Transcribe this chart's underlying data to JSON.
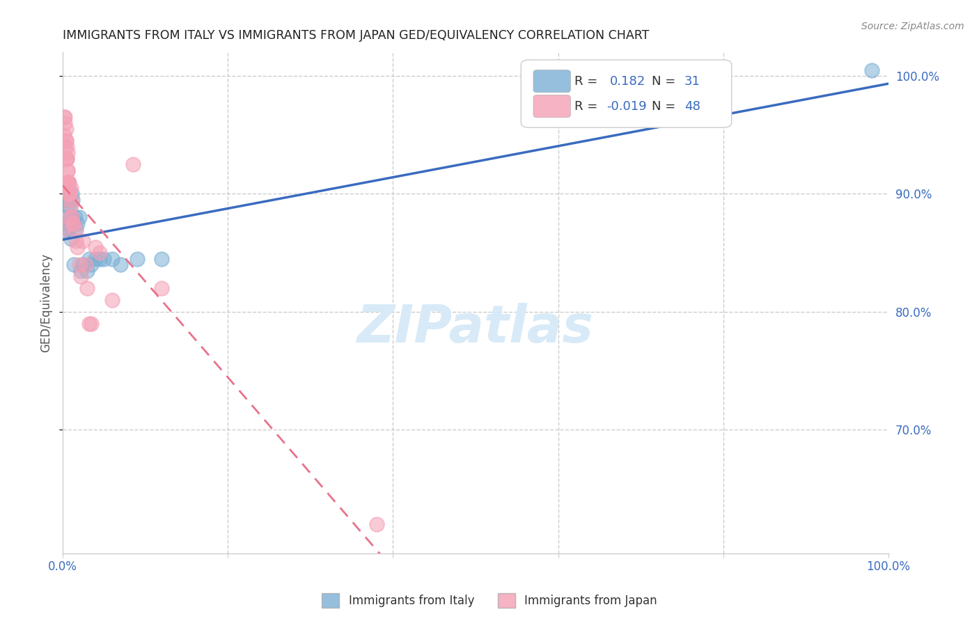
{
  "title": "IMMIGRANTS FROM ITALY VS IMMIGRANTS FROM JAPAN GED/EQUIVALENCY CORRELATION CHART",
  "source": "Source: ZipAtlas.com",
  "ylabel": "GED/Equivalency",
  "yticks_right": [
    "100.0%",
    "90.0%",
    "80.0%",
    "70.0%"
  ],
  "ytick_values": [
    1.0,
    0.9,
    0.8,
    0.7
  ],
  "R_italy": 0.182,
  "N_italy": 31,
  "R_japan": -0.019,
  "N_japan": 48,
  "italy_color": "#7bafd4",
  "japan_color": "#f4a0b5",
  "italy_line_color": "#3a6bbf",
  "japan_line_color": "#e8728a",
  "background_color": "#ffffff",
  "grid_color": "#cccccc",
  "axis_color": "#3a6bbf",
  "italy_x": [
    0.002,
    0.003,
    0.004,
    0.005,
    0.006,
    0.007,
    0.008,
    0.009,
    0.01,
    0.01,
    0.011,
    0.012,
    0.013,
    0.014,
    0.015,
    0.016,
    0.018,
    0.02,
    0.022,
    0.025,
    0.03,
    0.032,
    0.035,
    0.04,
    0.045,
    0.05,
    0.06,
    0.07,
    0.09,
    0.12,
    0.98
  ],
  "italy_y": [
    0.868,
    0.875,
    0.88,
    0.895,
    0.89,
    0.87,
    0.895,
    0.888,
    0.88,
    0.862,
    0.9,
    0.895,
    0.878,
    0.84,
    0.88,
    0.87,
    0.875,
    0.88,
    0.835,
    0.84,
    0.835,
    0.845,
    0.84,
    0.845,
    0.845,
    0.845,
    0.845,
    0.84,
    0.845,
    0.845,
    1.005
  ],
  "japan_x": [
    0.001,
    0.002,
    0.002,
    0.003,
    0.003,
    0.003,
    0.004,
    0.004,
    0.004,
    0.004,
    0.005,
    0.005,
    0.005,
    0.006,
    0.006,
    0.006,
    0.007,
    0.007,
    0.007,
    0.007,
    0.007,
    0.008,
    0.008,
    0.008,
    0.009,
    0.009,
    0.01,
    0.01,
    0.01,
    0.011,
    0.012,
    0.013,
    0.015,
    0.016,
    0.018,
    0.02,
    0.022,
    0.025,
    0.028,
    0.03,
    0.032,
    0.035,
    0.04,
    0.045,
    0.06,
    0.085,
    0.12,
    0.38
  ],
  "japan_y": [
    0.87,
    0.965,
    0.95,
    0.965,
    0.96,
    0.94,
    0.955,
    0.945,
    0.93,
    0.945,
    0.93,
    0.93,
    0.94,
    0.935,
    0.92,
    0.92,
    0.91,
    0.91,
    0.91,
    0.905,
    0.91,
    0.91,
    0.9,
    0.9,
    0.9,
    0.88,
    0.895,
    0.89,
    0.905,
    0.88,
    0.875,
    0.875,
    0.87,
    0.86,
    0.855,
    0.84,
    0.83,
    0.86,
    0.84,
    0.82,
    0.79,
    0.79,
    0.855,
    0.85,
    0.81,
    0.925,
    0.82,
    0.62
  ],
  "xlim": [
    0,
    1.0
  ],
  "ylim": [
    0.595,
    1.02
  ],
  "xtick_positions": [
    0.0,
    0.2,
    0.4,
    0.6,
    0.8,
    1.0
  ],
  "xtick_labels_visible": [
    "0.0%",
    "",
    "",
    "",
    "",
    "100.0%"
  ]
}
